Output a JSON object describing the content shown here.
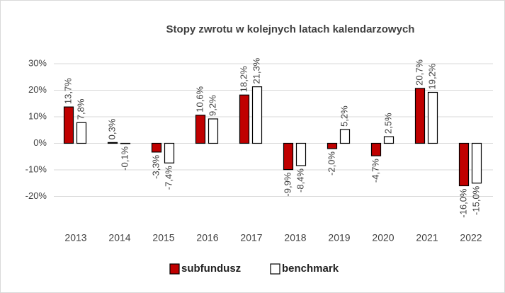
{
  "chart_data": {
    "type": "bar",
    "title": "Stopy zwrotu w kolejnych latach kalendarzowych",
    "categories": [
      "2013",
      "2014",
      "2015",
      "2016",
      "2017",
      "2018",
      "2019",
      "2020",
      "2021",
      "2022"
    ],
    "series": [
      {
        "name": "subfundusz",
        "color": "#c00000",
        "values": [
          13.7,
          0.3,
          -3.3,
          10.6,
          18.2,
          -9.9,
          -2.0,
          -4.7,
          20.7,
          -16.0
        ],
        "value_labels": [
          "13,7%",
          "0,3%",
          "-3,3%",
          "10,6%",
          "18,2%",
          "-9,9%",
          "-2,0%",
          "-4,7%",
          "20,7%",
          "-16,0%"
        ]
      },
      {
        "name": "benchmark",
        "color": "#ffffff",
        "values": [
          7.8,
          -0.1,
          -7.4,
          9.2,
          21.3,
          -8.4,
          5.2,
          2.5,
          19.2,
          -15.0
        ],
        "value_labels": [
          "7,8%",
          "-0,1%",
          "-7,4%",
          "9,2%",
          "21,3%",
          "-8,4%",
          "5,2%",
          "2,5%",
          "19,2%",
          "-15,0%"
        ]
      }
    ],
    "ylim": [
      -30,
      30
    ],
    "yticks": [
      {
        "value": -20,
        "label": "-20%"
      },
      {
        "value": -10,
        "label": "-10%"
      },
      {
        "value": 0,
        "label": "0%"
      },
      {
        "value": 10,
        "label": "10%"
      },
      {
        "value": 20,
        "label": "20%"
      },
      {
        "value": 30,
        "label": "30%"
      }
    ],
    "grid": true,
    "legend": "bottom"
  }
}
